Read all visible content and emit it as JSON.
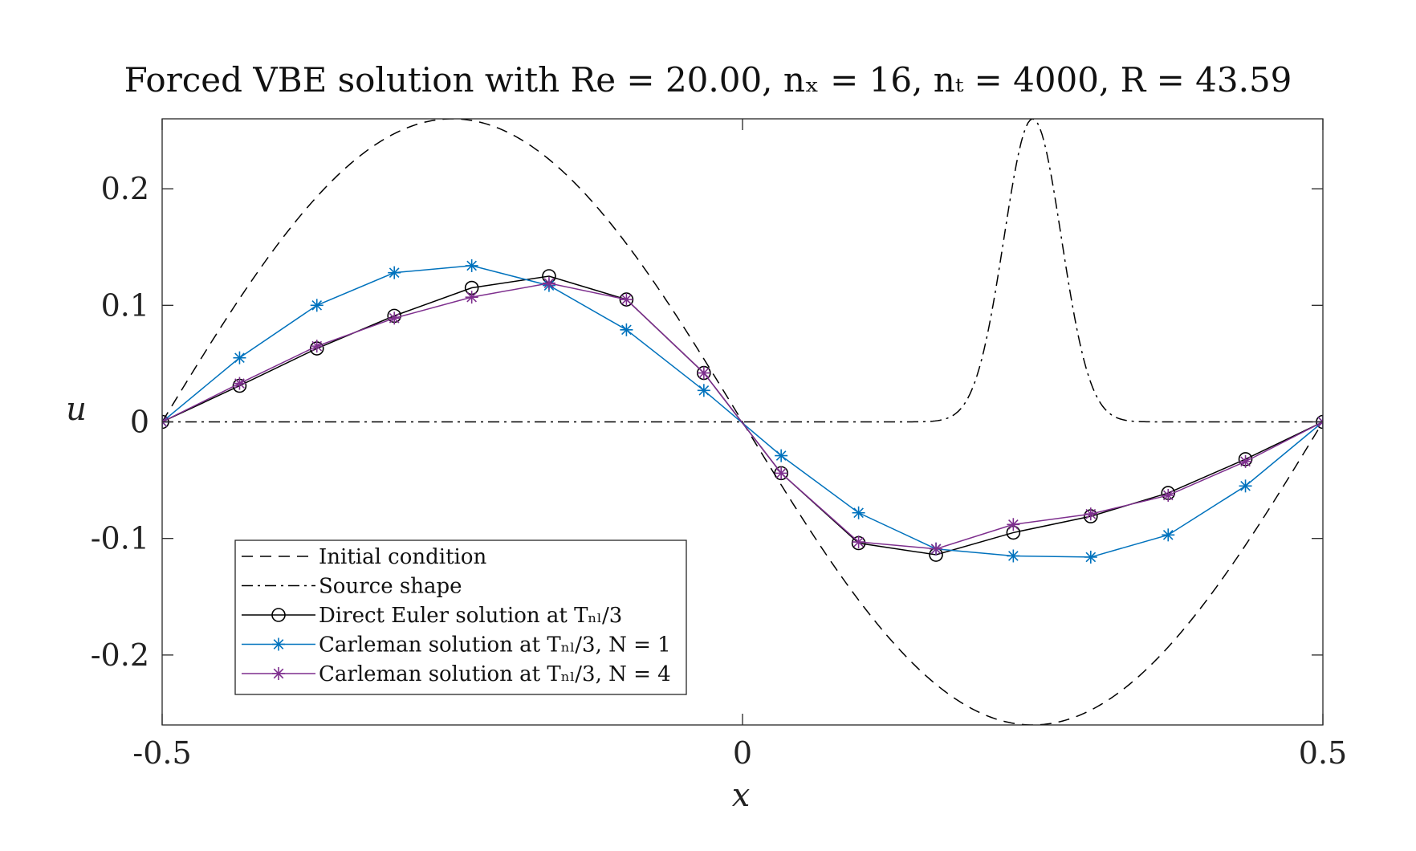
{
  "chart_data": {
    "type": "line",
    "title": "Forced VBE solution with Re = 20.00, nₓ = 16, nₜ = 4000, R = 43.59",
    "xlabel": "x",
    "ylabel": "u",
    "xlim": [
      -0.5,
      0.5
    ],
    "ylim": [
      -0.26,
      0.26
    ],
    "xticks": [
      -0.5,
      0,
      0.5
    ],
    "xtick_labels": [
      "-0.5",
      "0",
      "0.5"
    ],
    "yticks": [
      -0.2,
      -0.1,
      0,
      0.1,
      0.2
    ],
    "ytick_labels": [
      "-0.2",
      "-0.1",
      "0",
      "0.1",
      "0.2"
    ],
    "grid": false,
    "legend_position": "bottom-left",
    "series": [
      {
        "name": "Initial condition",
        "style": "dashed",
        "color": "#000000",
        "function": "0.26*sin(-2*pi*x)"
      },
      {
        "name": "Source shape",
        "style": "dashdot",
        "color": "#000000",
        "function": "0.26*exp(-((x-0.25)/0.035)^2)"
      },
      {
        "name": "Direct Euler solution at Tₙₗ/3",
        "style": "solid",
        "marker": "circle",
        "color": "#000000",
        "x": [
          -0.5,
          -0.4333,
          -0.3667,
          -0.3,
          -0.2333,
          -0.1667,
          -0.1,
          -0.0333,
          0.0333,
          0.1,
          0.1667,
          0.2333,
          0.3,
          0.3667,
          0.4333,
          0.5
        ],
        "y": [
          0,
          0.031,
          0.063,
          0.091,
          0.115,
          0.125,
          0.105,
          0.042,
          -0.044,
          -0.104,
          -0.114,
          -0.095,
          -0.081,
          -0.061,
          -0.032,
          0
        ]
      },
      {
        "name": "Carleman solution at Tₙₗ/3, N = 1",
        "style": "solid",
        "marker": "asterisk",
        "color": "#0072BD",
        "x": [
          -0.5,
          -0.4333,
          -0.3667,
          -0.3,
          -0.2333,
          -0.1667,
          -0.1,
          -0.0333,
          0.0333,
          0.1,
          0.1667,
          0.2333,
          0.3,
          0.3667,
          0.4333,
          0.5
        ],
        "y": [
          0,
          0.055,
          0.1,
          0.128,
          0.134,
          0.117,
          0.079,
          0.027,
          -0.029,
          -0.078,
          -0.109,
          -0.115,
          -0.116,
          -0.097,
          -0.055,
          0
        ]
      },
      {
        "name": "Carleman solution at Tₙₗ/3, N = 4",
        "style": "solid",
        "marker": "asterisk",
        "color": "#7E2F8E",
        "x": [
          -0.5,
          -0.4333,
          -0.3667,
          -0.3,
          -0.2333,
          -0.1667,
          -0.1,
          -0.0333,
          0.0333,
          0.1,
          0.1667,
          0.2333,
          0.3,
          0.3667,
          0.4333,
          0.5
        ],
        "y": [
          0,
          0.033,
          0.065,
          0.089,
          0.107,
          0.119,
          0.105,
          0.042,
          -0.044,
          -0.103,
          -0.109,
          -0.088,
          -0.079,
          -0.063,
          -0.034,
          0
        ]
      }
    ]
  }
}
